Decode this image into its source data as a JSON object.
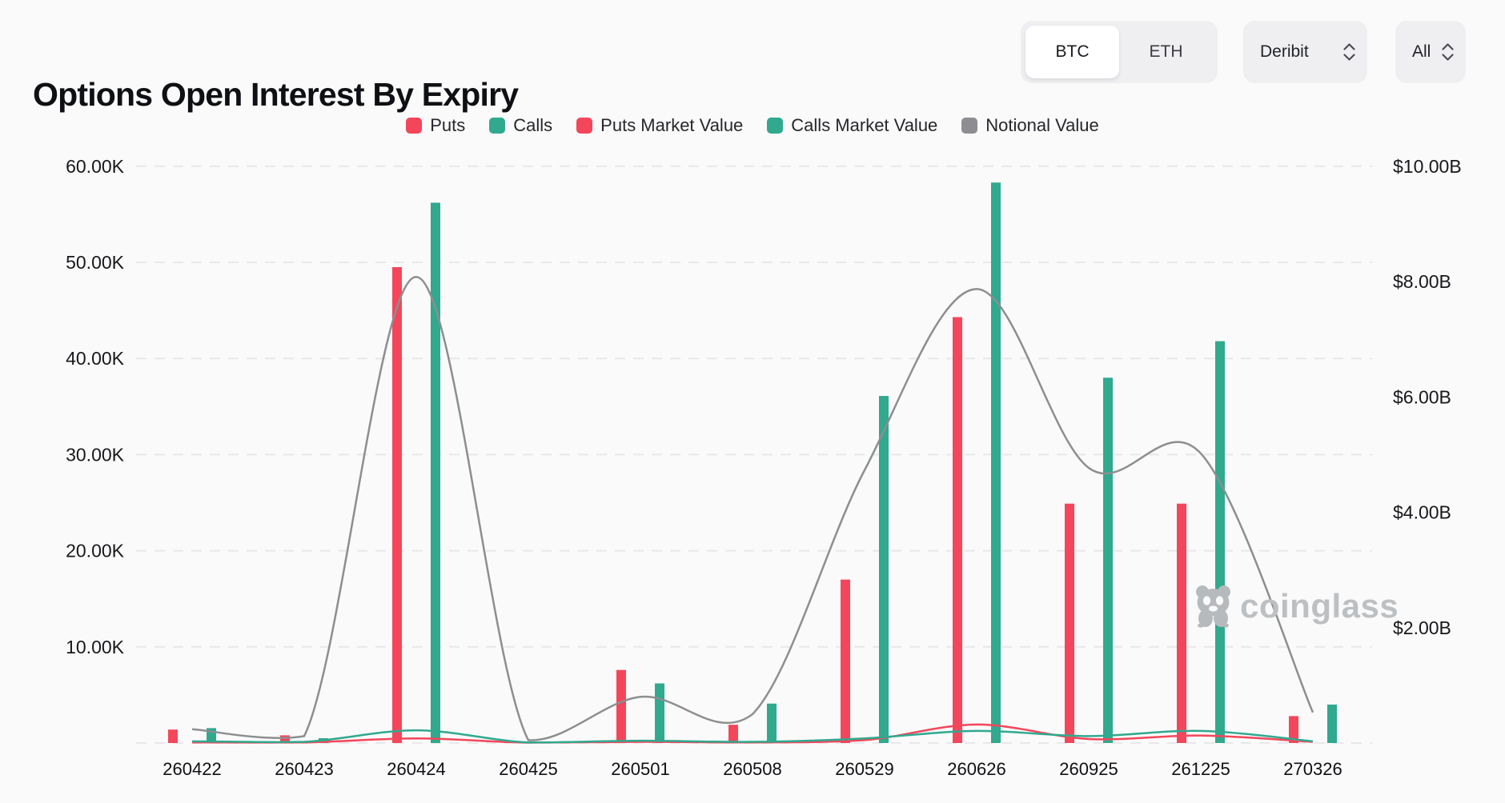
{
  "header": {
    "title": "Options Open Interest By Expiry",
    "asset_toggle": {
      "options": [
        "BTC",
        "ETH"
      ],
      "selected": "BTC"
    },
    "exchange_select": {
      "value": "Deribit"
    },
    "range_select": {
      "value": "All"
    }
  },
  "legend": [
    {
      "label": "Puts",
      "color": "#F4465A"
    },
    {
      "label": "Calls",
      "color": "#30A98F"
    },
    {
      "label": "Puts Market Value",
      "color": "#F4465A"
    },
    {
      "label": "Calls Market Value",
      "color": "#30A98F"
    },
    {
      "label": "Notional Value",
      "color": "#8E8E92"
    }
  ],
  "watermark": {
    "text": "coinglass"
  },
  "chart_data": {
    "type": "mixed-bar-line",
    "title": "Options Open Interest By Expiry",
    "categories": [
      "260422",
      "260423",
      "260424",
      "260425",
      "260501",
      "260508",
      "260529",
      "260626",
      "260925",
      "261225",
      "270326"
    ],
    "series": [
      {
        "name": "Puts",
        "type": "bar",
        "axis": "left",
        "unit": "contracts",
        "color": "#F4465A",
        "values": [
          1400,
          800,
          49500,
          60,
          7600,
          1900,
          17000,
          44300,
          24900,
          24900,
          2800
        ]
      },
      {
        "name": "Calls",
        "type": "bar",
        "axis": "left",
        "unit": "contracts",
        "color": "#30A98F",
        "values": [
          1550,
          500,
          56200,
          80,
          6200,
          4100,
          36100,
          58300,
          38000,
          41800,
          4000
        ]
      },
      {
        "name": "Puts Market Value",
        "type": "line",
        "axis": "right",
        "unit": "USD",
        "color": "#F4465A",
        "values": [
          10000000,
          10000000,
          80000000,
          5000000,
          20000000,
          10000000,
          50000000,
          320000000,
          70000000,
          130000000,
          20000000
        ]
      },
      {
        "name": "Calls Market Value",
        "type": "line",
        "axis": "right",
        "unit": "USD",
        "color": "#30A98F",
        "values": [
          30000000,
          20000000,
          220000000,
          10000000,
          40000000,
          20000000,
          80000000,
          210000000,
          120000000,
          210000000,
          30000000
        ]
      },
      {
        "name": "Notional Value",
        "type": "line",
        "axis": "right",
        "unit": "USD",
        "color": "#8C8E90",
        "values": [
          240000000,
          120000000,
          8080000000,
          50000000,
          800000000,
          500000000,
          4730000000,
          7870000000,
          4770000000,
          5020000000,
          530000000
        ]
      }
    ],
    "left_axis": {
      "ticks": [
        "10.00K",
        "20.00K",
        "30.00K",
        "40.00K",
        "50.00K",
        "60.00K"
      ],
      "min": 0,
      "max": 60000
    },
    "right_axis": {
      "ticks": [
        "$2.00B",
        "$4.00B",
        "$6.00B",
        "$8.00B",
        "$10.00B"
      ],
      "min": 0,
      "max": 10000000000
    },
    "grid": "horizontal-dashed",
    "legend_position": "top-center"
  }
}
